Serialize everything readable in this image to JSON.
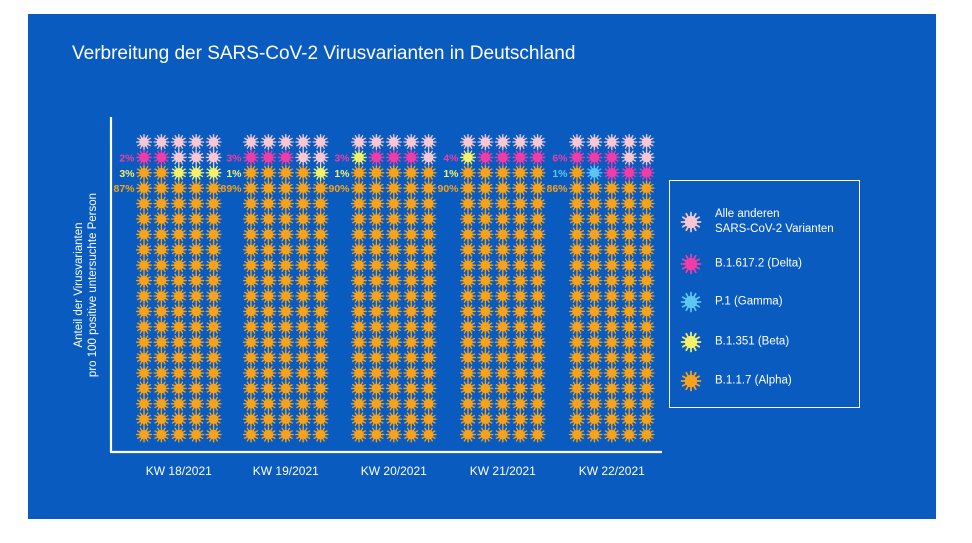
{
  "title": "Verbreitung der SARS-CoV-2 Virusvarianten in Deutschland",
  "ylabel_lines": [
    "Anteil der Virusvarianten",
    "pro 100 positive untersuchte Person"
  ],
  "colors": {
    "background": "#0a5bbf",
    "others": "#f7c8d3",
    "delta": "#f03ca7",
    "gamma": "#5ec4f0",
    "beta": "#f4f06a",
    "alpha": "#f7a21b"
  },
  "legend": [
    {
      "key": "others",
      "label_lines": [
        "Alle anderen",
        "SARS-CoV-2 Varianten"
      ],
      "icon": "virus-icon"
    },
    {
      "key": "delta",
      "label_lines": [
        "B.1.617.2 (Delta)"
      ],
      "icon": "virus-icon"
    },
    {
      "key": "gamma",
      "label_lines": [
        "P.1 (Gamma)"
      ],
      "icon": "virus-icon"
    },
    {
      "key": "beta",
      "label_lines": [
        "B.1.351 (Beta)"
      ],
      "icon": "virus-icon"
    },
    {
      "key": "alpha",
      "label_lines": [
        "B.1.1.7 (Alpha)"
      ],
      "icon": "virus-icon"
    }
  ],
  "chart_data": {
    "type": "waffle",
    "title": "Verbreitung der SARS-CoV-2 Virusvarianten in Deutschland",
    "ylabel": "Anteil der Virusvarianten pro 100 positive untersuchte Person",
    "categories": [
      "KW 18/2021",
      "KW 19/2021",
      "KW 20/2021",
      "KW 21/2021",
      "KW 22/2021"
    ],
    "units_per_column": 100,
    "grid": {
      "cols": 5,
      "rows": 20
    },
    "series": [
      {
        "name": "B.1.1.7 (Alpha)",
        "key": "alpha",
        "values": [
          87,
          89,
          90,
          90,
          86
        ]
      },
      {
        "name": "B.1.351 (Beta)",
        "key": "beta",
        "values": [
          3,
          1,
          1,
          1,
          0
        ]
      },
      {
        "name": "P.1 (Gamma)",
        "key": "gamma",
        "values": [
          0,
          0,
          0,
          0,
          1
        ]
      },
      {
        "name": "B.1.617.2 (Delta)",
        "key": "delta",
        "values": [
          2,
          3,
          3,
          4,
          6
        ]
      },
      {
        "name": "Alle anderen SARS-CoV-2 Varianten",
        "key": "others",
        "values": [
          8,
          7,
          6,
          5,
          7
        ]
      }
    ],
    "data_labels": [
      {
        "category": "KW 18/2021",
        "labels": [
          {
            "key": "delta",
            "text": "2%"
          },
          {
            "key": "beta",
            "text": "3%"
          },
          {
            "key": "alpha",
            "text": "87%"
          }
        ]
      },
      {
        "category": "KW 19/2021",
        "labels": [
          {
            "key": "delta",
            "text": "3%"
          },
          {
            "key": "beta",
            "text": "1%"
          },
          {
            "key": "alpha",
            "text": "89%"
          }
        ]
      },
      {
        "category": "KW 20/2021",
        "labels": [
          {
            "key": "delta",
            "text": "3%"
          },
          {
            "key": "beta",
            "text": "1%"
          },
          {
            "key": "alpha",
            "text": "90%"
          }
        ]
      },
      {
        "category": "KW 21/2021",
        "labels": [
          {
            "key": "delta",
            "text": "4%"
          },
          {
            "key": "beta",
            "text": "1%"
          },
          {
            "key": "alpha",
            "text": "90%"
          }
        ]
      },
      {
        "category": "KW 22/2021",
        "labels": [
          {
            "key": "delta",
            "text": "6%"
          },
          {
            "key": "gamma",
            "text": "1%"
          },
          {
            "key": "alpha",
            "text": "86%"
          }
        ]
      }
    ]
  }
}
